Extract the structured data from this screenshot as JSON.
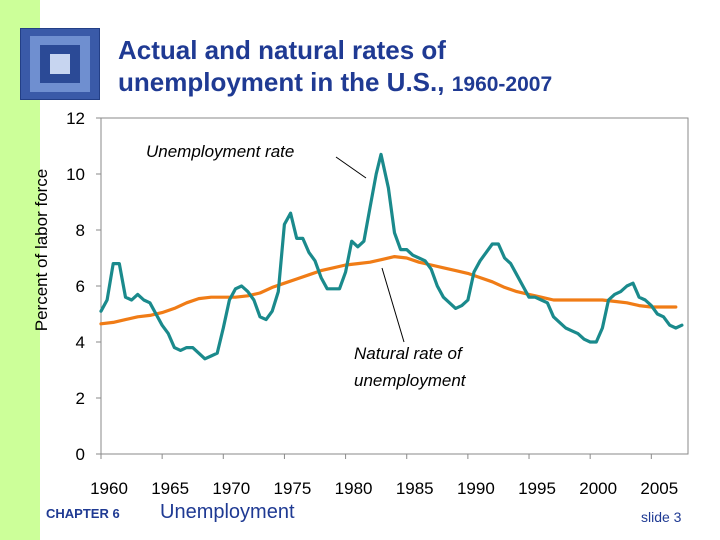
{
  "slide": {
    "title_line1": "Actual and natural rates of",
    "title_line2": "unemployment in the U.S.,",
    "title_years": "1960-2007",
    "chapter_label": "CHAPTER 6",
    "chapter_topic": "Unemployment",
    "slide_number": "slide 3",
    "accent_color": "#1f3a93",
    "sidebar_color": "#ccff99"
  },
  "chart_data": {
    "type": "line",
    "ylabel": "Percent of labor force",
    "xlim": [
      1960,
      2008
    ],
    "ylim": [
      0,
      12
    ],
    "x_ticks": [
      1960,
      1965,
      1970,
      1975,
      1980,
      1985,
      1990,
      1995,
      2000,
      2005
    ],
    "y_ticks": [
      0,
      2,
      4,
      6,
      8,
      10,
      12
    ],
    "grid": false,
    "annotations": [
      {
        "text": "Unemployment rate",
        "points_to": "Unemployment rate"
      },
      {
        "text": "Natural rate of unemployment",
        "line1": "Natural rate of",
        "line2": "unemployment",
        "points_to": "Natural rate of unemployment"
      }
    ],
    "series": [
      {
        "name": "Unemployment rate",
        "color": "#1a8a8c",
        "x": [
          1960.0,
          1960.5,
          1961.0,
          1961.5,
          1962.0,
          1962.5,
          1963.0,
          1963.5,
          1964.0,
          1964.5,
          1965.0,
          1965.5,
          1966.0,
          1966.5,
          1967.0,
          1967.5,
          1968.0,
          1968.5,
          1969.0,
          1969.5,
          1970.0,
          1970.5,
          1971.0,
          1971.5,
          1972.0,
          1972.5,
          1973.0,
          1973.5,
          1974.0,
          1974.5,
          1975.0,
          1975.5,
          1976.0,
          1976.5,
          1977.0,
          1977.5,
          1978.0,
          1978.5,
          1979.0,
          1979.5,
          1980.0,
          1980.5,
          1981.0,
          1981.5,
          1982.0,
          1982.5,
          1982.9,
          1983.5,
          1984.0,
          1984.5,
          1985.0,
          1985.5,
          1986.0,
          1986.5,
          1987.0,
          1987.5,
          1988.0,
          1988.5,
          1989.0,
          1989.5,
          1990.0,
          1990.5,
          1991.0,
          1991.5,
          1992.0,
          1992.5,
          1993.0,
          1993.5,
          1994.0,
          1994.5,
          1995.0,
          1995.5,
          1996.0,
          1996.5,
          1997.0,
          1997.5,
          1998.0,
          1998.5,
          1999.0,
          1999.5,
          2000.0,
          2000.5,
          2001.0,
          2001.5,
          2002.0,
          2002.5,
          2003.0,
          2003.5,
          2004.0,
          2004.5,
          2005.0,
          2005.5,
          2006.0,
          2006.5,
          2007.0,
          2007.5
        ],
        "y": [
          5.1,
          5.5,
          6.8,
          6.8,
          5.6,
          5.5,
          5.7,
          5.5,
          5.4,
          5.0,
          4.6,
          4.3,
          3.8,
          3.7,
          3.8,
          3.8,
          3.6,
          3.4,
          3.5,
          3.6,
          4.5,
          5.5,
          5.9,
          6.0,
          5.8,
          5.5,
          4.9,
          4.8,
          5.1,
          5.8,
          8.2,
          8.6,
          7.7,
          7.7,
          7.2,
          6.9,
          6.3,
          5.9,
          5.9,
          5.9,
          6.5,
          7.6,
          7.4,
          7.6,
          8.8,
          10.0,
          10.7,
          9.5,
          7.9,
          7.3,
          7.3,
          7.1,
          7.0,
          6.9,
          6.6,
          6.0,
          5.6,
          5.4,
          5.2,
          5.3,
          5.5,
          6.5,
          6.9,
          7.2,
          7.5,
          7.5,
          7.0,
          6.8,
          6.4,
          6.0,
          5.6,
          5.6,
          5.5,
          5.4,
          4.9,
          4.7,
          4.5,
          4.4,
          4.3,
          4.1,
          4.0,
          4.0,
          4.5,
          5.5,
          5.7,
          5.8,
          6.0,
          6.1,
          5.6,
          5.5,
          5.3,
          5.0,
          4.9,
          4.6,
          4.5,
          4.6
        ]
      },
      {
        "name": "Natural rate of unemployment",
        "color": "#f07c16",
        "x": [
          1960,
          1961,
          1962,
          1963,
          1964,
          1965,
          1966,
          1967,
          1968,
          1969,
          1970,
          1971,
          1972,
          1973,
          1974,
          1975,
          1976,
          1977,
          1978,
          1979,
          1980,
          1981,
          1982,
          1983,
          1984,
          1985,
          1986,
          1987,
          1988,
          1989,
          1990,
          1991,
          1992,
          1993,
          1994,
          1995,
          1996,
          1997,
          1998,
          1999,
          2000,
          2001,
          2002,
          2003,
          2004,
          2005,
          2006,
          2007
        ],
        "y": [
          4.65,
          4.7,
          4.8,
          4.9,
          4.95,
          5.05,
          5.2,
          5.4,
          5.55,
          5.6,
          5.6,
          5.6,
          5.65,
          5.75,
          5.95,
          6.1,
          6.25,
          6.4,
          6.55,
          6.65,
          6.75,
          6.8,
          6.85,
          6.95,
          7.05,
          7.0,
          6.85,
          6.75,
          6.65,
          6.55,
          6.45,
          6.3,
          6.15,
          5.95,
          5.8,
          5.7,
          5.6,
          5.5,
          5.5,
          5.5,
          5.5,
          5.5,
          5.45,
          5.4,
          5.3,
          5.25,
          5.25,
          5.25
        ]
      }
    ]
  }
}
